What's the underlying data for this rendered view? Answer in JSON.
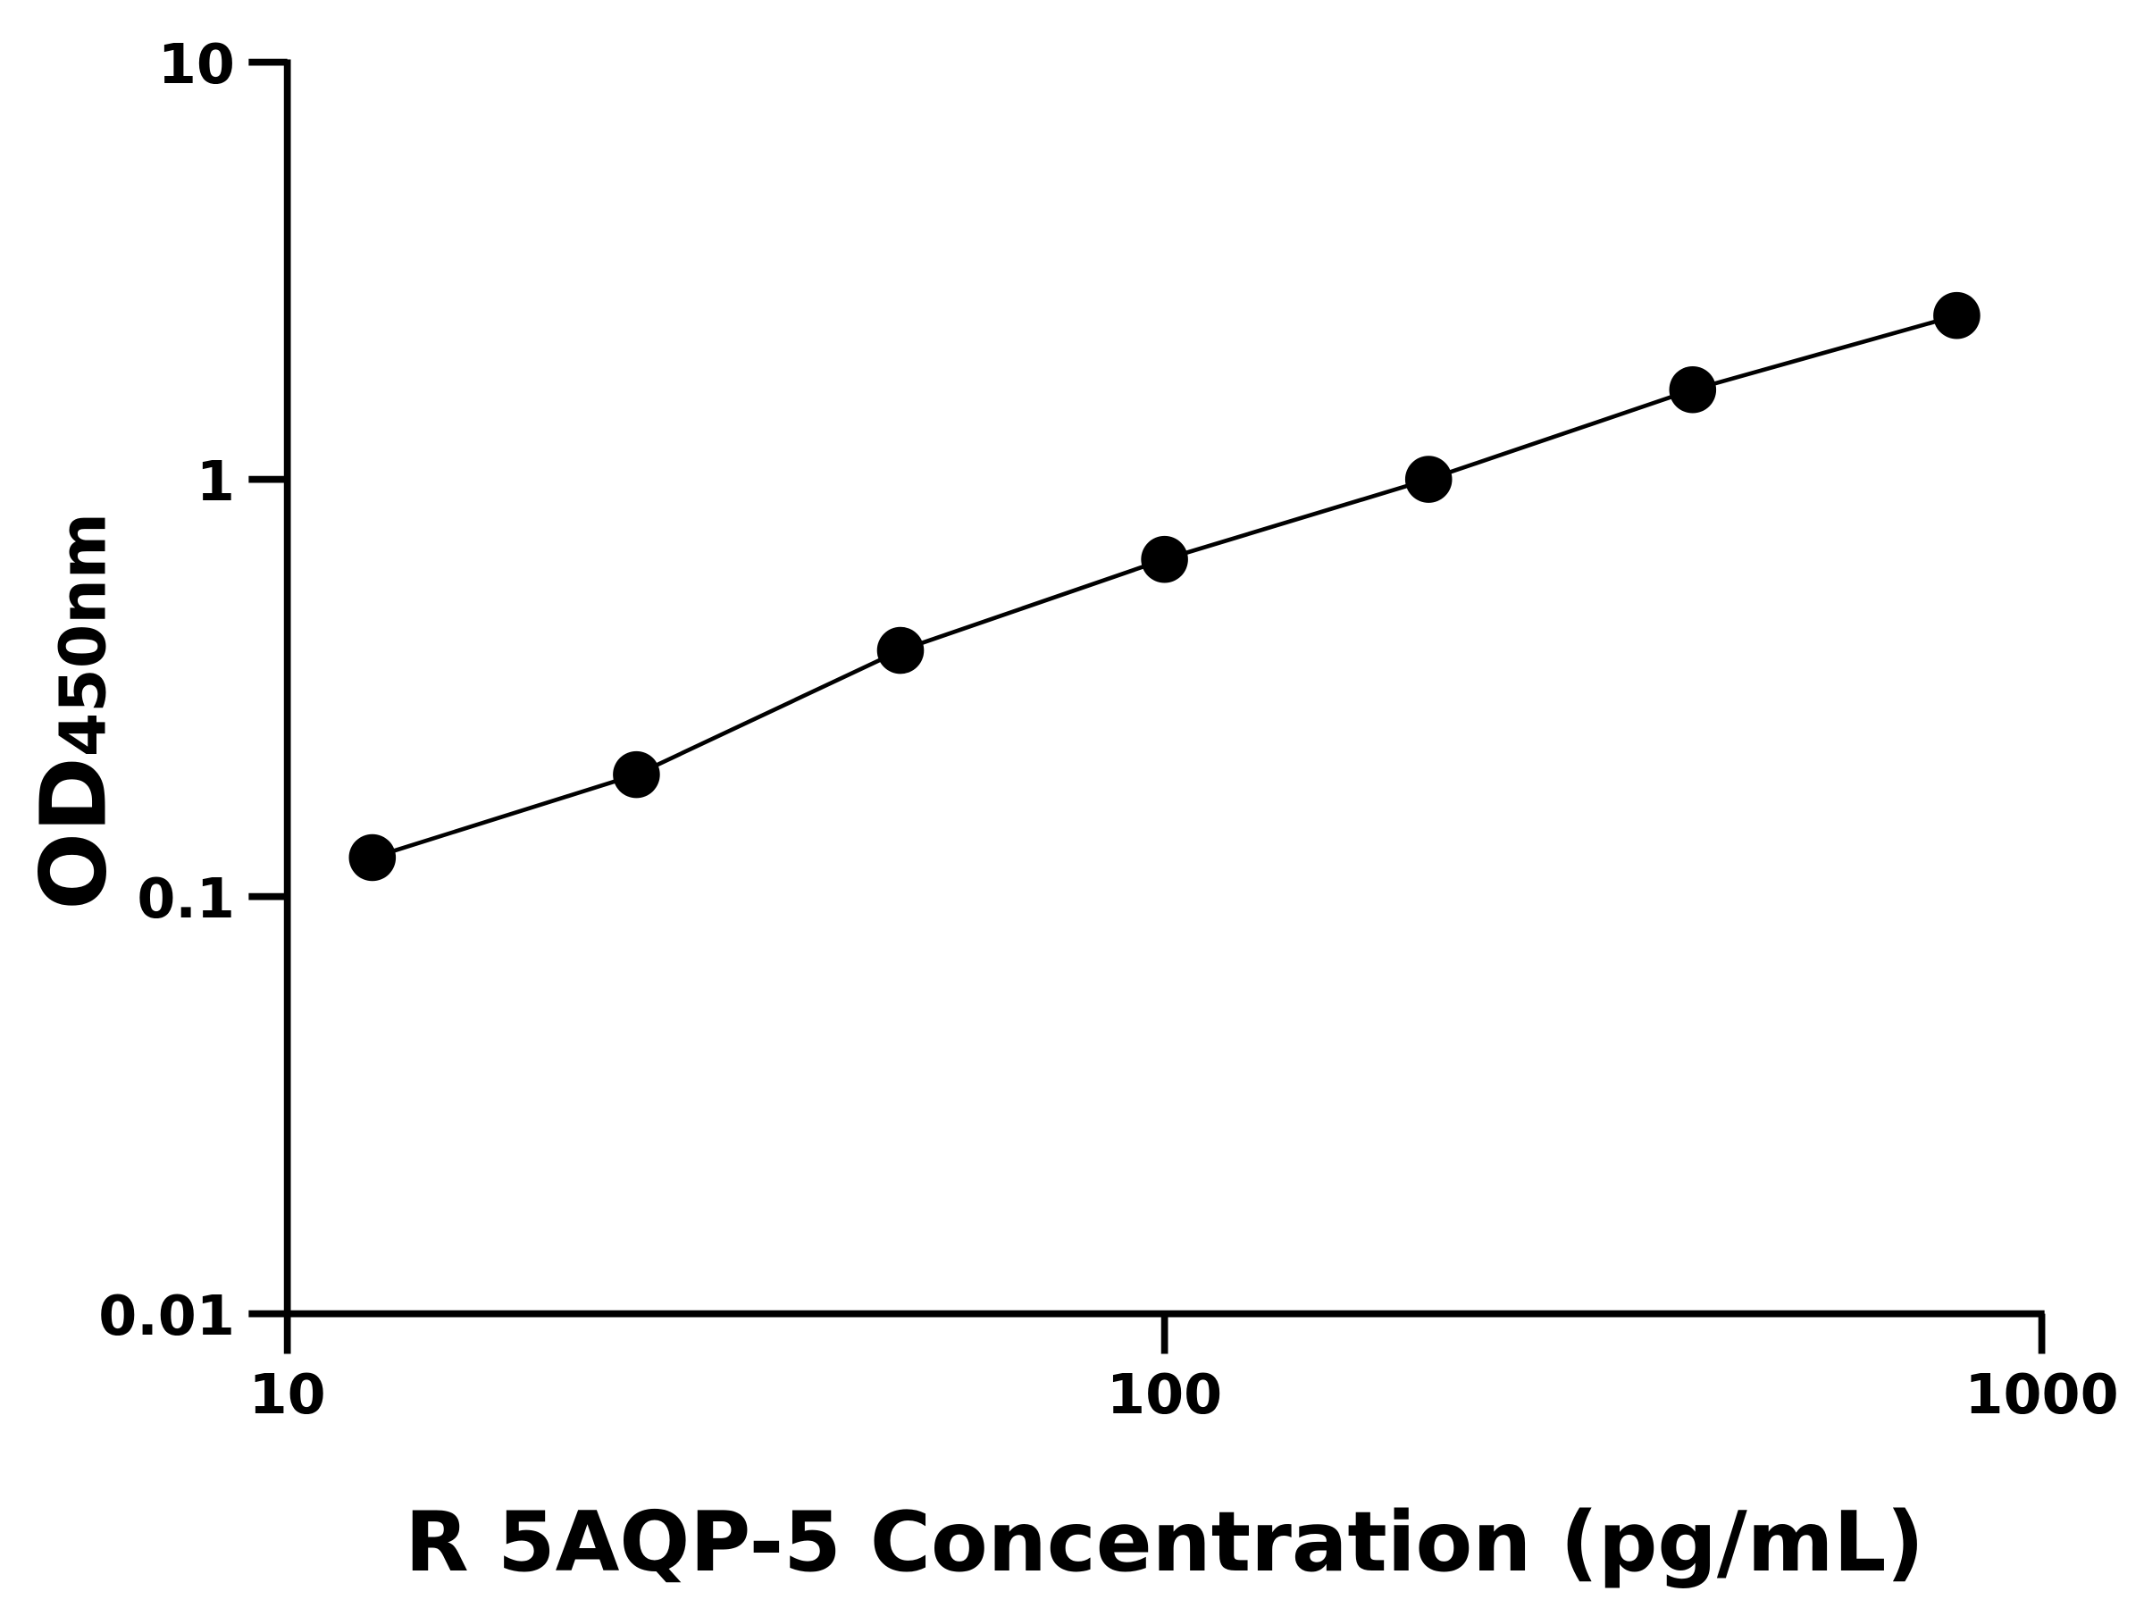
{
  "chart_data": {
    "type": "line",
    "title": "",
    "xlabel": "R 5AQP-5 Concentration (pg/mL)",
    "ylabel_main": "OD",
    "ylabel_sub": "450nm",
    "x_scale": "log",
    "y_scale": "log",
    "xlim": [
      10,
      1000
    ],
    "ylim": [
      0.01,
      10
    ],
    "x_ticks": [
      "10",
      "100",
      "1000"
    ],
    "x_tick_values": [
      10,
      100,
      1000
    ],
    "y_ticks": [
      "0.01",
      "0.1",
      "1",
      "10"
    ],
    "y_tick_values": [
      0.01,
      0.1,
      1,
      10
    ],
    "grid": false,
    "marker": "filled-circle",
    "color": "#000000",
    "series": [
      {
        "x": [
          12.5,
          25,
          50,
          100,
          200,
          400,
          800
        ],
        "y": [
          0.124,
          0.196,
          0.389,
          0.643,
          1.0,
          1.64,
          2.47
        ]
      }
    ]
  }
}
